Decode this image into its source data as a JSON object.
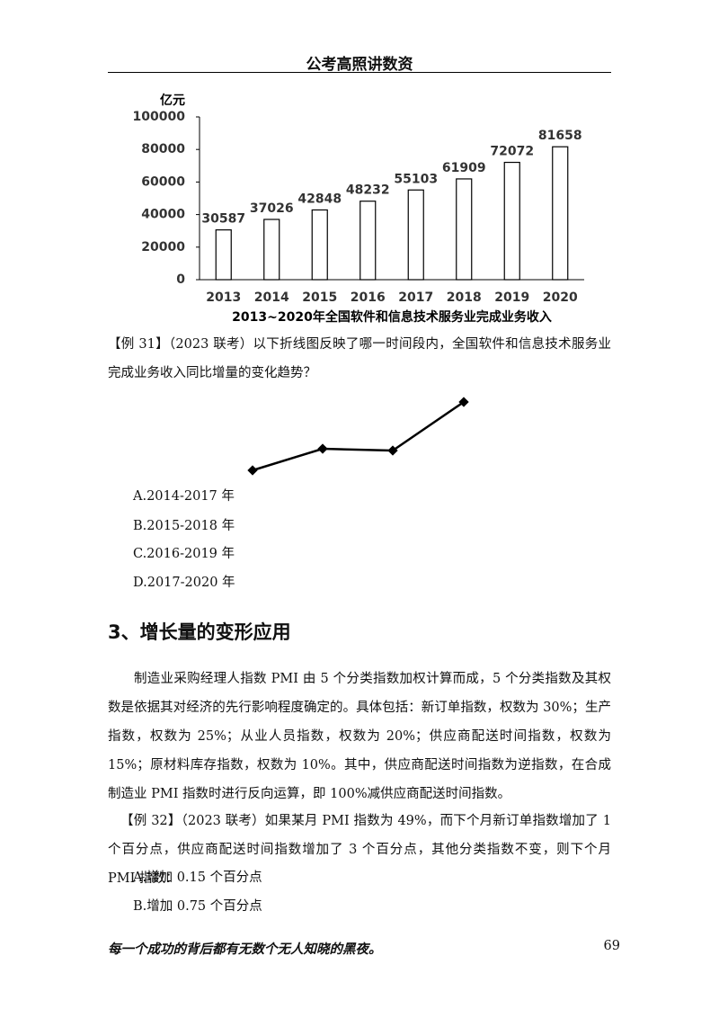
{
  "header": {
    "title": "公考高照讲数资"
  },
  "chart_data": {
    "type": "bar",
    "unit": "亿元",
    "title": "2013~2020年全国软件和信息技术服务业完成业务收入",
    "categories": [
      "2013",
      "2014",
      "2015",
      "2016",
      "2017",
      "2018",
      "2019",
      "2020"
    ],
    "values": [
      30587,
      37026,
      42848,
      48232,
      55103,
      61909,
      72072,
      81658
    ],
    "color": "#ffffff",
    "ylim": [
      0,
      100000
    ],
    "yticks": [
      0,
      20000,
      40000,
      60000,
      80000,
      100000
    ],
    "grid": false
  },
  "example31": {
    "text": "【例 31】（2023 联考）以下折线图反映了哪一时间段内，全国软件和信息技术服务业完成业务收入同比增量的变化趋势？",
    "options": [
      "A.2014-2017 年",
      "B.2015-2018 年",
      "C.2016-2019 年",
      "D.2017-2020 年"
    ]
  },
  "section": {
    "heading": "3、增长量的变形应用",
    "paragraph": "制造业采购经理人指数 PMI 由 5 个分类指数加权计算而成，5 个分类指数及其权数是依据其对经济的先行影响程度确定的。具体包括：新订单指数，权数为 30%；生产指数，权数为 25%；从业人员指数，权数为 20%；供应商配送时间指数，权数为 15%；原材料库存指数，权数为 10%。其中，供应商配送时间指数为逆指数，在合成制造业 PMI 指数时进行反向运算，即 100%减供应商配送时间指数。"
  },
  "example32": {
    "text": "【例 32】（2023 联考）如果某月 PMI 指数为 49%，而下个月新订单指数增加了 1 个百分点，供应商配送时间指数增加了 3 个百分点，其他分类指数不变，则下个月 PMI 指数：",
    "options": [
      "A.增加 0.15 个百分点",
      "B.增加 0.75 个百分点"
    ]
  },
  "footer": {
    "motto": "每一个成功的背后都有无数个无人知晓的黑夜。",
    "page_number": 69
  }
}
